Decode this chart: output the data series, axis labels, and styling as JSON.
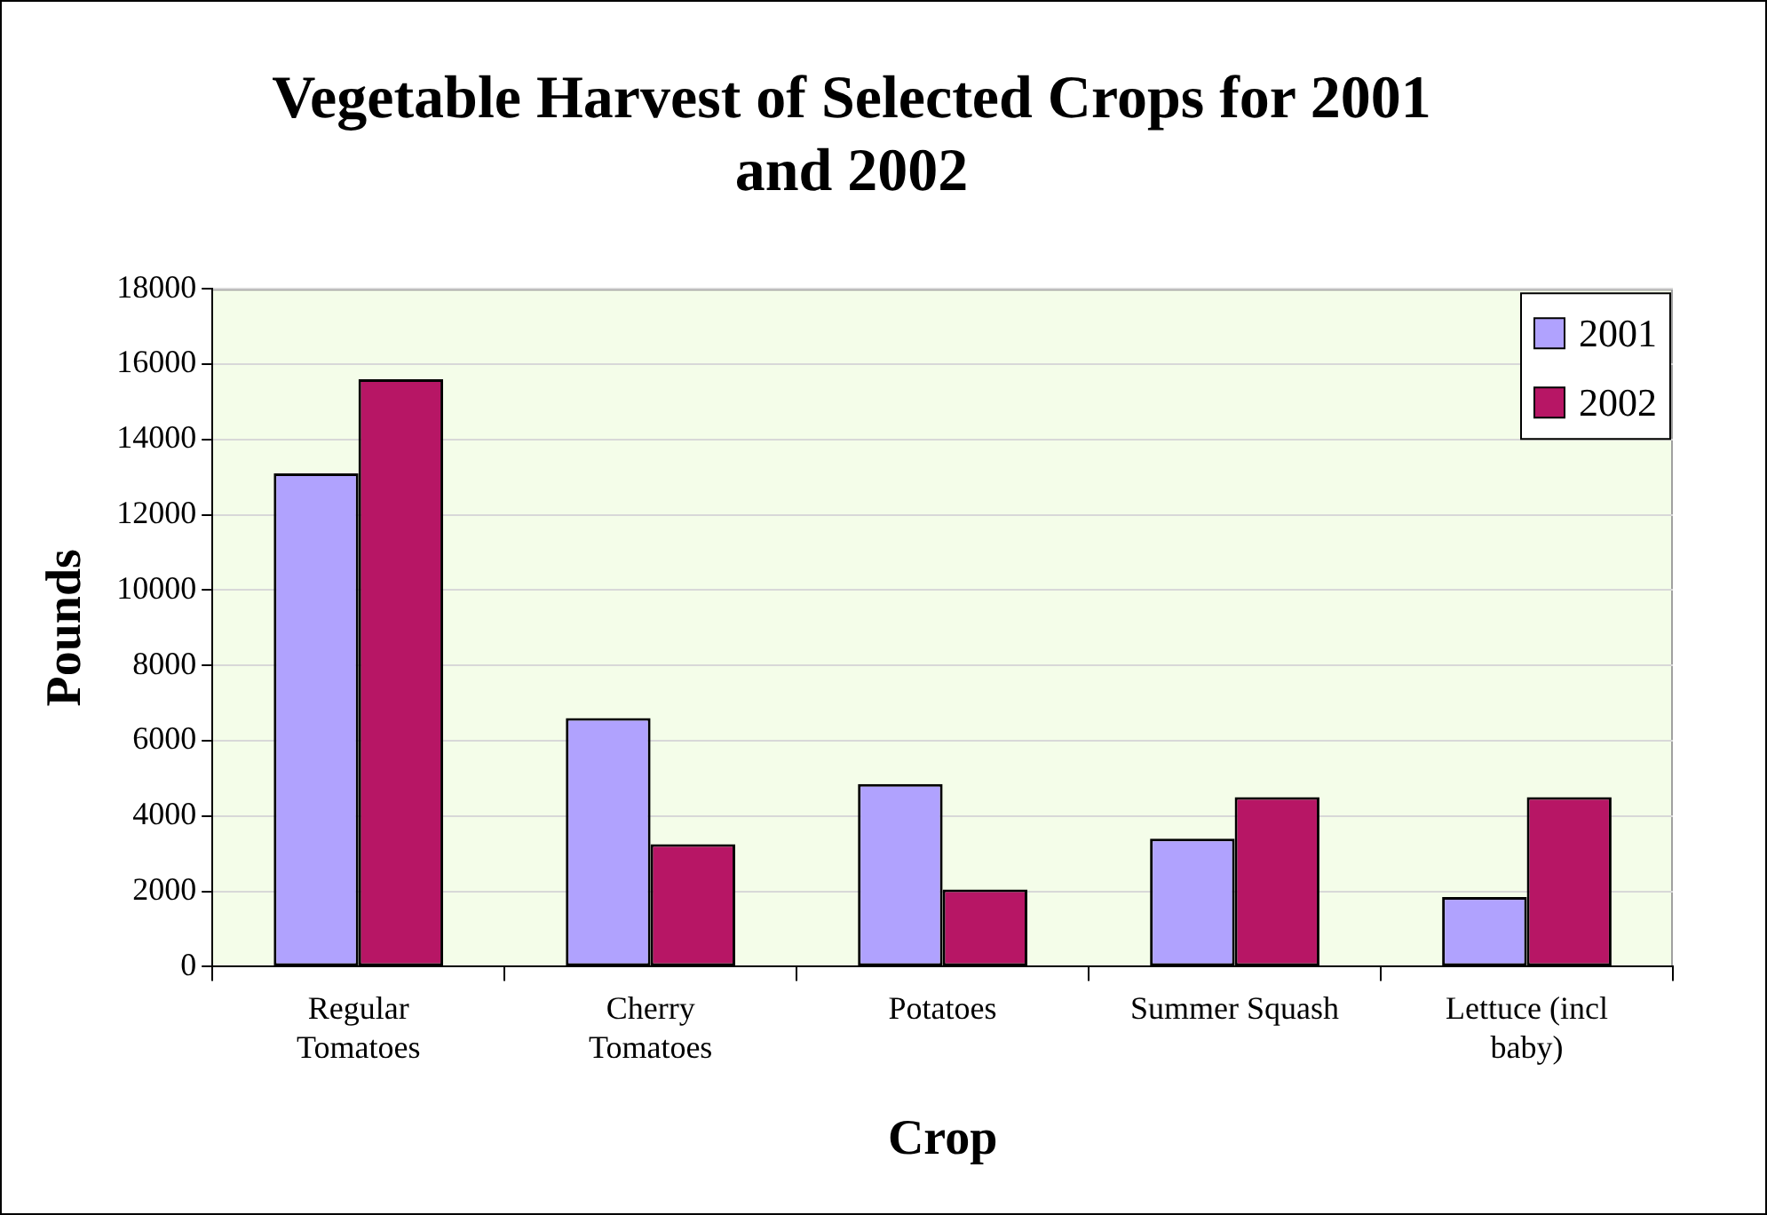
{
  "chart_data": {
    "type": "bar",
    "title": "Vegetable Harvest of Selected Crops for 2001 and 2002",
    "xlabel": "Crop",
    "ylabel": "Pounds",
    "categories": [
      "Regular Tomatoes",
      "Cherry Tomatoes",
      "Potatoes",
      "Summer Squash",
      "Lettuce (incl baby)"
    ],
    "series": [
      {
        "name": "2001",
        "color": "#b0a2fe",
        "values": [
          13100,
          6600,
          4850,
          3400,
          1850
        ]
      },
      {
        "name": "2002",
        "color": "#b71665",
        "values": [
          15600,
          3250,
          2050,
          4500,
          4500
        ]
      }
    ],
    "ylim": [
      0,
      18000
    ],
    "yticks": [
      0,
      2000,
      4000,
      6000,
      8000,
      10000,
      12000,
      14000,
      16000,
      18000
    ],
    "grid": "y",
    "legend": "top right"
  }
}
